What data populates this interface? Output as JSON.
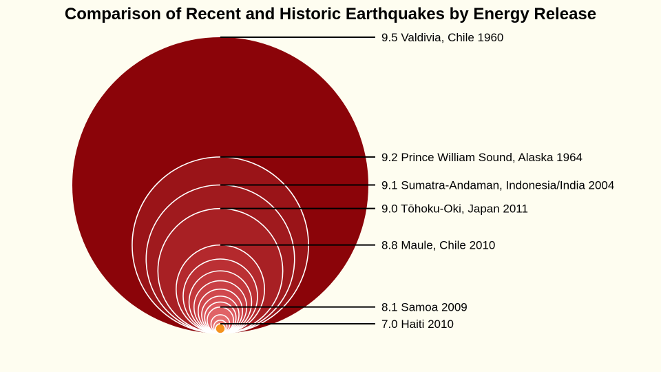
{
  "chart_data": {
    "type": "nested-circle-bubble",
    "title": "Comparison of Recent and Historic Earthquakes by Energy Release",
    "quakes": [
      {
        "magnitude": 9.5,
        "label": "9.5 Valdivia, Chile 1960",
        "color": "#8B0409",
        "labeled": true
      },
      {
        "magnitude": 9.2,
        "label": "9.2 Prince William Sound, Alaska 1964",
        "color": "#9A1418",
        "labeled": true
      },
      {
        "magnitude": 9.1,
        "label": "9.1 Sumatra-Andaman, Indonesia/India 2004",
        "color": "#A01A1E",
        "labeled": true
      },
      {
        "magnitude": 9.0,
        "label": "9.0 Tōhoku-Oki, Japan 2011",
        "color": "#A82024",
        "labeled": true
      },
      {
        "magnitude": 8.8,
        "label": "8.8 Maule, Chile 2010",
        "color": "#B4292D",
        "labeled": true
      },
      {
        "magnitude": 8.7,
        "label": "",
        "color": "#BB3034",
        "labeled": false
      },
      {
        "magnitude": 8.6,
        "label": "",
        "color": "#C2383C",
        "labeled": false
      },
      {
        "magnitude": 8.5,
        "label": "",
        "color": "#C94045",
        "labeled": false
      },
      {
        "magnitude": 8.4,
        "label": "",
        "color": "#D0484D",
        "labeled": false
      },
      {
        "magnitude": 8.3,
        "label": "",
        "color": "#D65156",
        "labeled": false
      },
      {
        "magnitude": 8.2,
        "label": "",
        "color": "#DC5A5F",
        "labeled": false
      },
      {
        "magnitude": 8.1,
        "label": "8.1 Samoa 2009",
        "color": "#E06367",
        "labeled": true
      },
      {
        "magnitude": 7.9,
        "label": "",
        "color": "#E46D6F",
        "labeled": false
      },
      {
        "magnitude": 7.7,
        "label": "",
        "color": "#E87A74",
        "labeled": false
      },
      {
        "magnitude": 7.5,
        "label": "",
        "color": "#EC8870",
        "labeled": false
      },
      {
        "magnitude": 7.0,
        "label": "7.0 Haiti 2010",
        "color": "#F4921E",
        "labeled": true
      }
    ],
    "colors": {
      "background": "#FEFDF0",
      "outline": "#FFFFFF",
      "leader_line": "#000000"
    }
  }
}
